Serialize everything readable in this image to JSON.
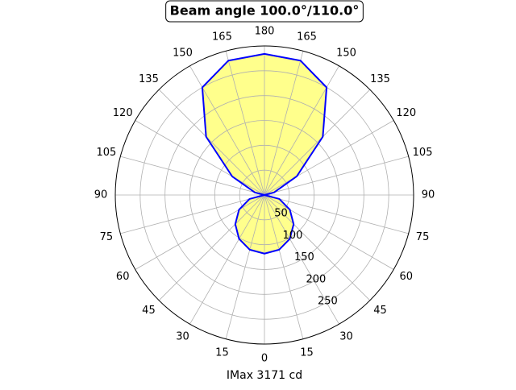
{
  "chart_data": {
    "type": "polar",
    "title": "Beam angle 100.0°/110.0°",
    "xlabel": "IMax 3171 cd",
    "rlim": [
      0,
      300
    ],
    "rticks": [
      50,
      100,
      150,
      200,
      250
    ],
    "thetaticks": [
      0,
      15,
      30,
      45,
      60,
      75,
      90,
      105,
      120,
      135,
      150,
      165,
      180,
      {
        "value": 195,
        "label": "165"
      },
      {
        "value": 210,
        "label": "150"
      },
      {
        "value": 225,
        "label": "135"
      },
      {
        "value": 240,
        "label": "120"
      },
      {
        "value": 255,
        "label": "105"
      },
      {
        "value": 270,
        "label": "90"
      },
      {
        "value": 285,
        "label": "75"
      },
      {
        "value": 300,
        "label": "60"
      },
      {
        "value": 315,
        "label": "45"
      },
      {
        "value": 330,
        "label": "30"
      },
      {
        "value": 345,
        "label": "15"
      }
    ],
    "grid": true,
    "series": [
      {
        "color": "#0000ff",
        "fill": "#ffff80",
        "theta": [
          0,
          15,
          30,
          45,
          60,
          75,
          90,
          105,
          120,
          135,
          150,
          165,
          180,
          195,
          210,
          225,
          240,
          255,
          270,
          285,
          300,
          315,
          330,
          345
        ],
        "values": [
          118,
          114,
          102,
          83,
          59,
          31,
          0,
          20,
          75,
          166,
          250,
          280,
          284,
          280,
          250,
          166,
          75,
          20,
          0,
          31,
          59,
          83,
          102,
          114
        ]
      }
    ]
  }
}
